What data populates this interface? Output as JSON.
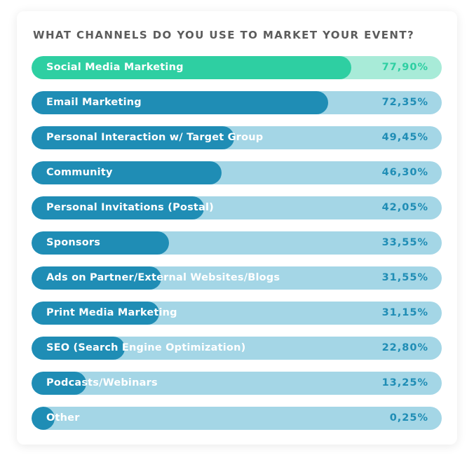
{
  "title": "WHAT CHANNELS DO YOU USE TO MARKET YOUR EVENT?",
  "colors": {
    "highlight_fill": "#2ecfa2",
    "highlight_track": "#a8ebd8",
    "highlight_value": "#2ecfa2",
    "fill": "#1f8db5",
    "track": "#a4d6e6",
    "value": "#1f8db5",
    "label": "#ffffff",
    "title": "#5c5c5c"
  },
  "chart_data": {
    "type": "bar",
    "orientation": "horizontal",
    "title": "WHAT CHANNELS DO YOU USE TO MARKET YOUR EVENT?",
    "xlim": [
      0,
      100
    ],
    "unit": "%",
    "categories": [
      "Social Media Marketing",
      "Email Marketing",
      "Personal Interaction w/ Target Group",
      "Community",
      "Personal Invitations (Postal)",
      "Sponsors",
      "Ads on Partner/External Websites/Blogs",
      "Print Media Marketing",
      "SEO (Search Engine Optimization)",
      "Podcasts/Webinars",
      "Other"
    ],
    "values": [
      77.9,
      72.35,
      49.45,
      46.3,
      42.05,
      33.55,
      31.55,
      31.15,
      22.8,
      13.25,
      0.25
    ],
    "value_labels": [
      "77,90%",
      "72,35%",
      "49,45%",
      "46,30%",
      "42,05%",
      "33,55%",
      "31,55%",
      "31,15%",
      "22,80%",
      "13,25%",
      "0,25%"
    ],
    "highlighted_index": 0
  }
}
